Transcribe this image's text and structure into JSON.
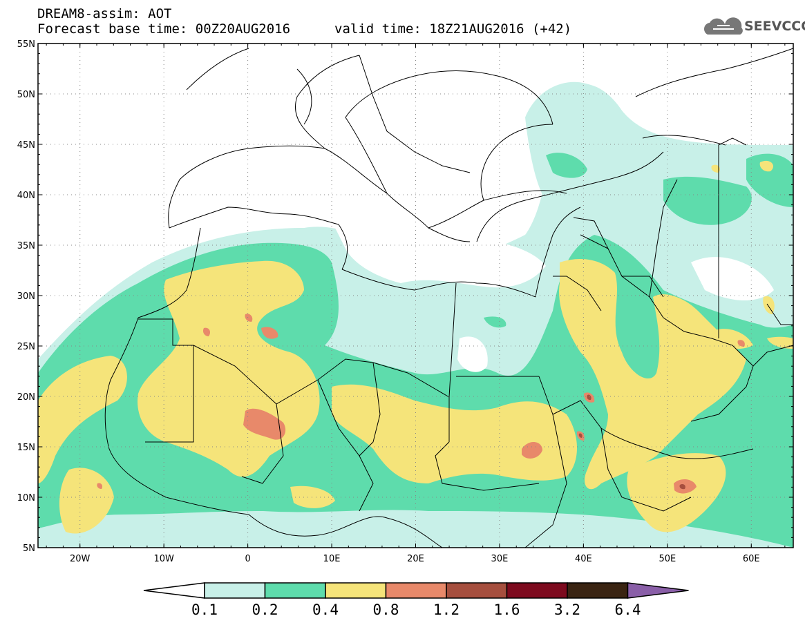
{
  "title": {
    "line1": "DREAM8-assim: AOT",
    "line2": "Forecast base time: 00Z20AUG2016",
    "valid": "valid time: 18Z21AUG2016 (+42)"
  },
  "logo": {
    "text": "SEEVCCC",
    "icon": "cloud-icon"
  },
  "map": {
    "lat_labels": [
      "55N",
      "50N",
      "45N",
      "40N",
      "35N",
      "30N",
      "25N",
      "20N",
      "15N",
      "10N",
      "5N"
    ],
    "lon_labels": [
      "20W",
      "10W",
      "0",
      "10E",
      "20E",
      "30E",
      "40E",
      "50E",
      "60E"
    ],
    "lat_range": [
      5,
      55
    ],
    "lon_range": [
      -25,
      65
    ],
    "grid": "dotted",
    "variable": "AOT"
  },
  "colorbar": {
    "labels": [
      "0.1",
      "0.2",
      "0.4",
      "0.8",
      "1.2",
      "1.6",
      "3.2",
      "6.4"
    ],
    "colors": [
      "#c8f0e8",
      "#5edcac",
      "#f5e47a",
      "#e8896a",
      "#a64f3e",
      "#7d0a1e",
      "#3a2412",
      "#8a5fa8"
    ],
    "extend": "both"
  },
  "colors": {
    "level1": "#c8f0e8",
    "level2": "#5edcac",
    "level3": "#f5e47a",
    "level4": "#e8896a",
    "level5": "#a64f3e",
    "border": "#000000"
  }
}
